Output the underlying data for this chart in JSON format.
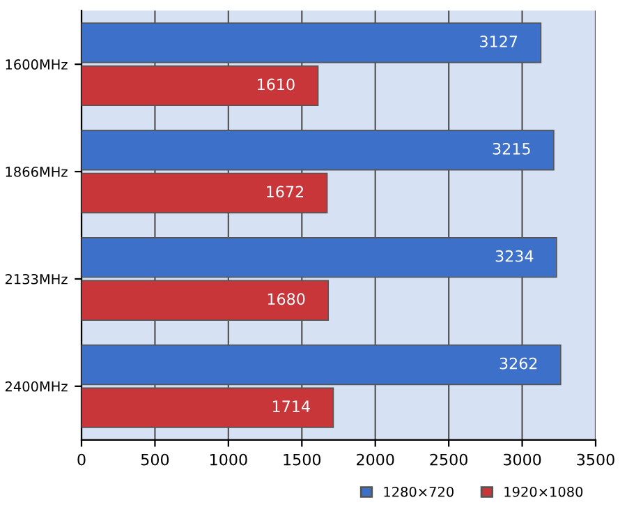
{
  "chart_data": {
    "type": "bar",
    "orientation": "horizontal",
    "categories": [
      "1600MHz",
      "1866MHz",
      "2133MHz",
      "2400MHz"
    ],
    "series": [
      {
        "name": "1280×720",
        "color": "#3d70c8",
        "values": [
          3127,
          3215,
          3234,
          3262
        ]
      },
      {
        "name": "1920×1080",
        "color": "#c8363a",
        "values": [
          1610,
          1672,
          1680,
          1714
        ]
      }
    ],
    "xlim": [
      0,
      3500
    ],
    "xticks": [
      0,
      500,
      1000,
      1500,
      2000,
      2500,
      3000,
      3500
    ],
    "grid": "x",
    "legend": "bottom right",
    "data_labels": true
  }
}
